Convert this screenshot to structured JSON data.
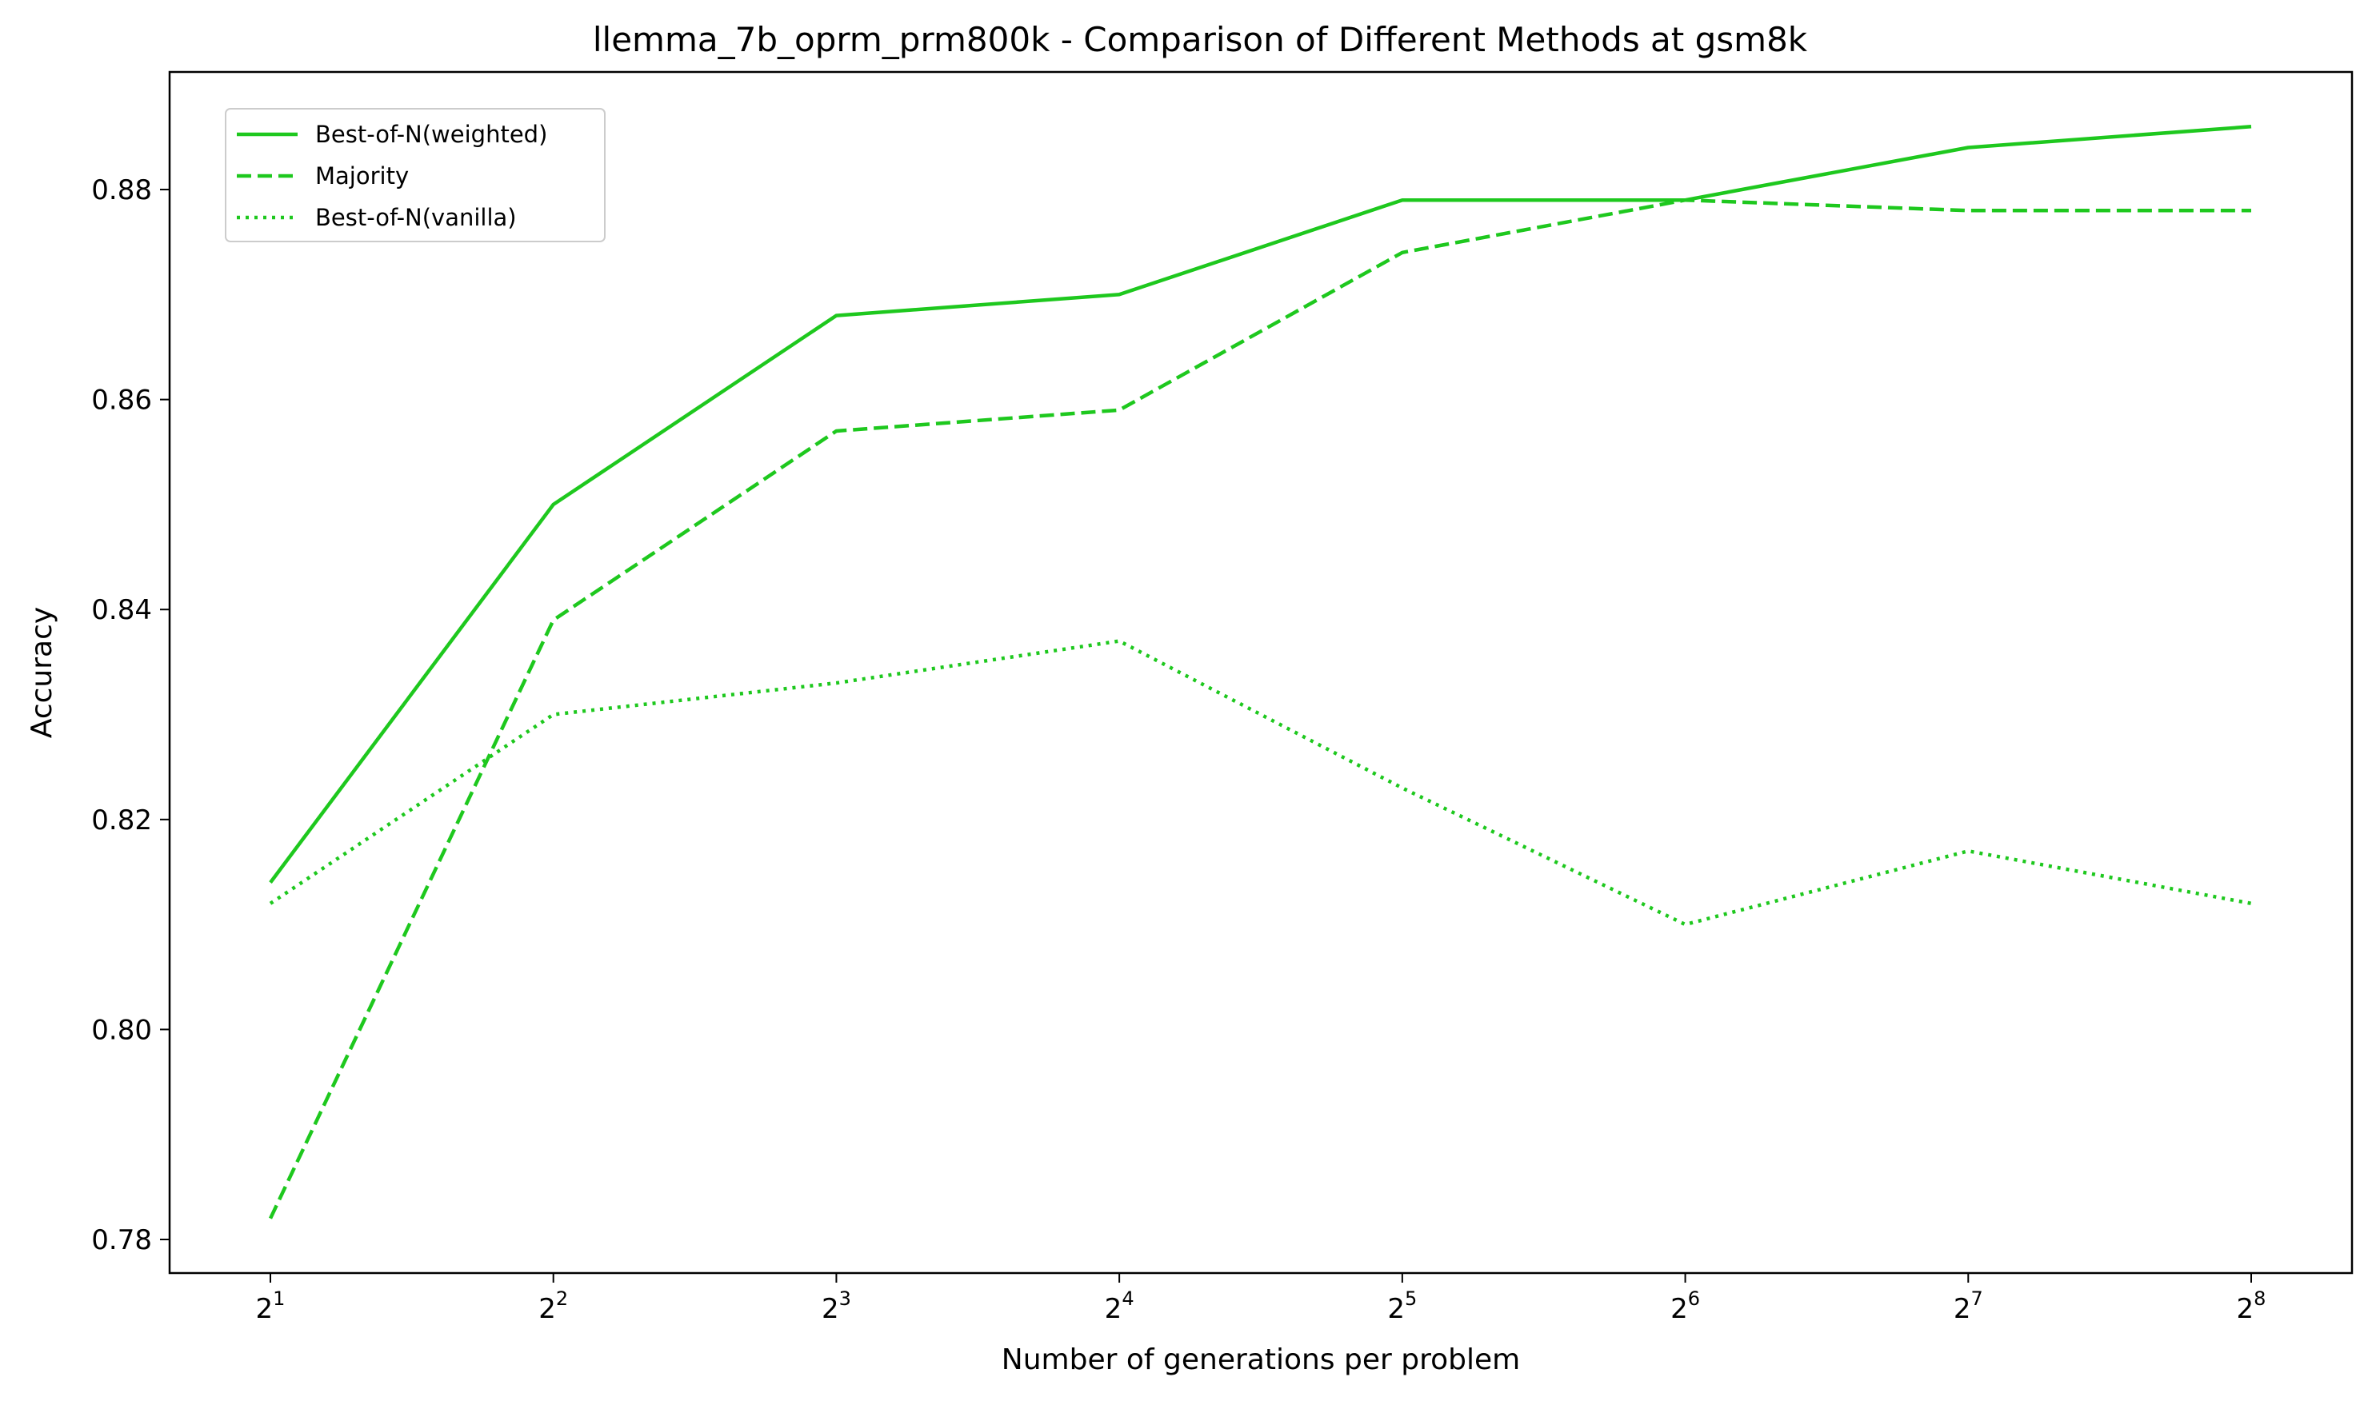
{
  "chart_data": {
    "type": "line",
    "title": "llemma_7b_oprm_prm800k - Comparison of Different Methods at gsm8k",
    "xlabel": "Number of generations per problem",
    "ylabel": "Accuracy",
    "x": [
      2,
      4,
      8,
      16,
      32,
      64,
      128,
      256
    ],
    "x_tick_base": "2",
    "x_tick_exponents": [
      "1",
      "2",
      "3",
      "4",
      "5",
      "6",
      "7",
      "8"
    ],
    "x_scale": "log2",
    "y_ticks": [
      "0.78",
      "0.80",
      "0.82",
      "0.84",
      "0.86",
      "0.88"
    ],
    "ylim": [
      0.7768,
      0.8912
    ],
    "grid": false,
    "legend_position": "top-left",
    "series": [
      {
        "name": "Best-of-N(weighted)",
        "style": "solid",
        "color": "#1ec81e",
        "values": [
          0.814,
          0.85,
          0.868,
          0.87,
          0.879,
          0.879,
          0.884,
          0.886
        ]
      },
      {
        "name": "Majority",
        "style": "dashed",
        "color": "#1ec81e",
        "values": [
          0.782,
          0.839,
          0.857,
          0.859,
          0.874,
          0.879,
          0.878,
          0.878
        ]
      },
      {
        "name": "Best-of-N(vanilla)",
        "style": "dotted",
        "color": "#1ec81e",
        "values": [
          0.812,
          0.83,
          0.833,
          0.837,
          0.823,
          0.81,
          0.817,
          0.812
        ]
      }
    ]
  }
}
